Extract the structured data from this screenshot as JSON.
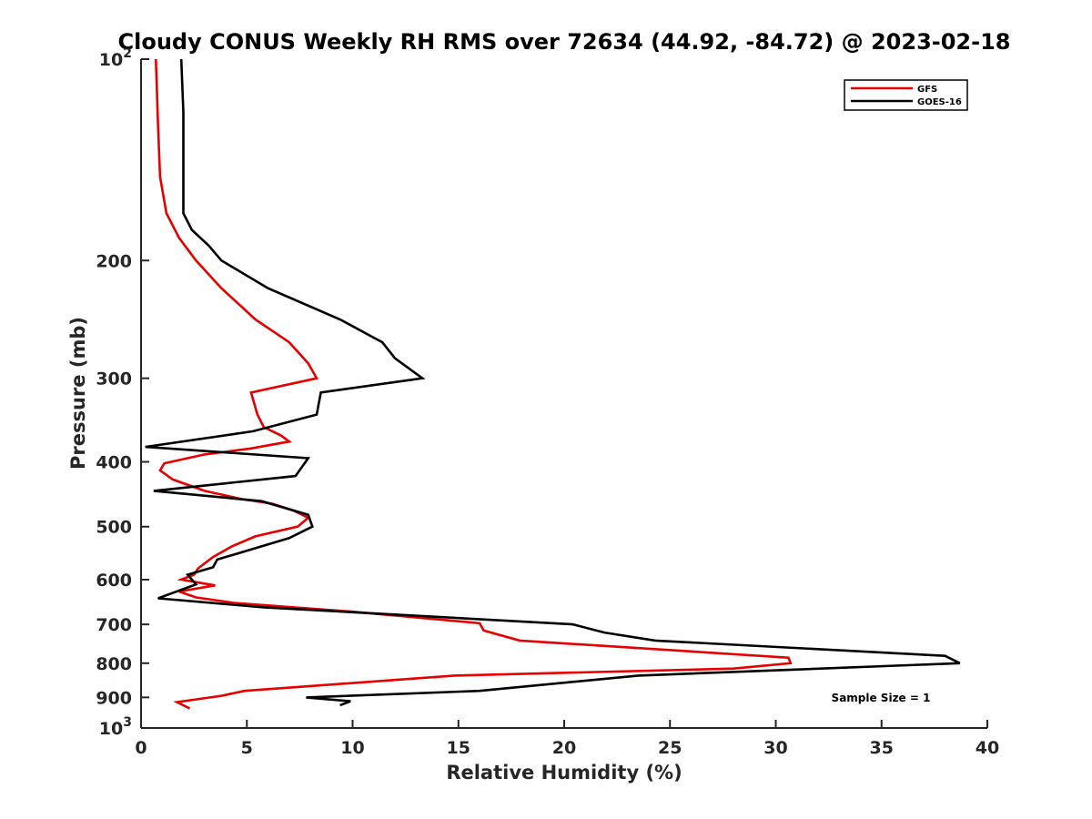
{
  "chart_data": {
    "type": "line",
    "title": "Cloudy CONUS Weekly RH RMS over 72634 (44.92, -84.72) @ 2023-02-18",
    "xlabel": "Relative Humidity (%)",
    "ylabel": "Pressure (mb)",
    "xlim": [
      0,
      40
    ],
    "ylim": [
      100,
      1000
    ],
    "y_scale": "log",
    "y_reversed": true,
    "grid": false,
    "legend_position": "top-right",
    "x_ticks": [
      "0",
      "5",
      "10",
      "15",
      "20",
      "25",
      "30",
      "35",
      "40"
    ],
    "y_ticks": [
      {
        "value": 100,
        "base": "10",
        "exp": "2"
      },
      {
        "value": 200,
        "label": "200"
      },
      {
        "value": 300,
        "label": "300"
      },
      {
        "value": 400,
        "label": "400"
      },
      {
        "value": 500,
        "label": "500"
      },
      {
        "value": 600,
        "label": "600"
      },
      {
        "value": 700,
        "label": "700"
      },
      {
        "value": 800,
        "label": "800"
      },
      {
        "value": 900,
        "label": "900"
      },
      {
        "value": 1000,
        "base": "10",
        "exp": "3"
      }
    ],
    "annotation": "Sample Size = 1",
    "series": [
      {
        "name": "GFS",
        "color": "#e60000",
        "points": [
          [
            0.7,
            100
          ],
          [
            0.8,
            125
          ],
          [
            0.9,
            150
          ],
          [
            1.2,
            170
          ],
          [
            1.8,
            185
          ],
          [
            2.6,
            200
          ],
          [
            3.8,
            220
          ],
          [
            5.4,
            245
          ],
          [
            7.0,
            265
          ],
          [
            7.9,
            285
          ],
          [
            8.3,
            300
          ],
          [
            5.2,
            315
          ],
          [
            5.5,
            340
          ],
          [
            5.8,
            355
          ],
          [
            6.6,
            365
          ],
          [
            7.0,
            373
          ],
          [
            5.2,
            382
          ],
          [
            3.0,
            390
          ],
          [
            1.1,
            402
          ],
          [
            0.9,
            412
          ],
          [
            1.5,
            425
          ],
          [
            3.0,
            442
          ],
          [
            4.8,
            455
          ],
          [
            6.2,
            462
          ],
          [
            7.2,
            473
          ],
          [
            7.9,
            485
          ],
          [
            7.4,
            500
          ],
          [
            5.4,
            517
          ],
          [
            4.3,
            535
          ],
          [
            3.4,
            555
          ],
          [
            2.7,
            577
          ],
          [
            2.5,
            590
          ],
          [
            1.9,
            600
          ],
          [
            3.5,
            612
          ],
          [
            1.8,
            625
          ],
          [
            2.6,
            638
          ],
          [
            4.4,
            650
          ],
          [
            10.0,
            670
          ],
          [
            16.0,
            697
          ],
          [
            16.2,
            715
          ],
          [
            17.9,
            740
          ],
          [
            30.6,
            785
          ],
          [
            30.7,
            800
          ],
          [
            28.0,
            815
          ],
          [
            14.8,
            835
          ],
          [
            4.9,
            880
          ],
          [
            3.8,
            895
          ],
          [
            1.7,
            915
          ],
          [
            2.3,
            935
          ]
        ]
      },
      {
        "name": "GOES-16",
        "color": "#000000",
        "points": [
          [
            1.9,
            100
          ],
          [
            2.0,
            120
          ],
          [
            2.0,
            150
          ],
          [
            2.0,
            170
          ],
          [
            2.4,
            180
          ],
          [
            3.2,
            190
          ],
          [
            3.8,
            200
          ],
          [
            6.0,
            220
          ],
          [
            9.4,
            245
          ],
          [
            11.4,
            265
          ],
          [
            12.0,
            280
          ],
          [
            13.3,
            300
          ],
          [
            8.5,
            315
          ],
          [
            8.3,
            340
          ],
          [
            5.3,
            360
          ],
          [
            0.2,
            380
          ],
          [
            7.9,
            395
          ],
          [
            7.3,
            420
          ],
          [
            0.6,
            442
          ],
          [
            5.7,
            458
          ],
          [
            7.9,
            480
          ],
          [
            8.1,
            500
          ],
          [
            7.0,
            520
          ],
          [
            3.6,
            560
          ],
          [
            3.4,
            575
          ],
          [
            2.2,
            590
          ],
          [
            2.6,
            610
          ],
          [
            0.8,
            640
          ],
          [
            5.8,
            660
          ],
          [
            20.4,
            700
          ],
          [
            21.9,
            720
          ],
          [
            24.3,
            740
          ],
          [
            38.0,
            780
          ],
          [
            38.7,
            800
          ],
          [
            23.5,
            835
          ],
          [
            16.0,
            880
          ],
          [
            7.8,
            900
          ],
          [
            9.9,
            912
          ],
          [
            9.4,
            925
          ]
        ]
      }
    ]
  }
}
